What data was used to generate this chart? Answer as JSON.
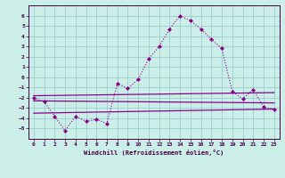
{
  "xlabel": "Windchill (Refroidissement éolien,°C)",
  "background_color": "#cceee8",
  "grid_color": "#99cccc",
  "xlim": [
    -0.5,
    23.5
  ],
  "ylim": [
    -6,
    7
  ],
  "yticks": [
    -5,
    -4,
    -3,
    -2,
    -1,
    0,
    1,
    2,
    3,
    4,
    5,
    6
  ],
  "xticks": [
    0,
    1,
    2,
    3,
    4,
    5,
    6,
    7,
    8,
    9,
    10,
    11,
    12,
    13,
    14,
    15,
    16,
    17,
    18,
    19,
    20,
    21,
    22,
    23
  ],
  "main_series": {
    "x": [
      0,
      1,
      2,
      3,
      4,
      5,
      6,
      7,
      8,
      9,
      10,
      11,
      12,
      13,
      14,
      15,
      16,
      17,
      18,
      19,
      20,
      21,
      22,
      23
    ],
    "y": [
      -2.0,
      -2.4,
      -3.8,
      -5.2,
      -3.8,
      -4.3,
      -4.1,
      -4.5,
      -0.6,
      -1.1,
      -0.2,
      1.8,
      3.0,
      4.7,
      6.0,
      5.5,
      4.7,
      3.7,
      2.8,
      -1.4,
      -2.1,
      -1.2,
      -2.9,
      -3.1
    ],
    "color": "#880088",
    "marker": "D",
    "markersize": 2.0,
    "linewidth": 0.8,
    "linestyle": ":"
  },
  "band_lines": [
    {
      "x0": 0,
      "x1": 23,
      "y0": -1.8,
      "y1": -1.5,
      "color": "#880088",
      "lw": 0.9
    },
    {
      "x0": 0,
      "x1": 23,
      "y0": -2.3,
      "y1": -2.5,
      "color": "#880088",
      "lw": 0.9
    },
    {
      "x0": 0,
      "x1": 23,
      "y0": -3.5,
      "y1": -3.1,
      "color": "#880088",
      "lw": 0.9
    }
  ]
}
